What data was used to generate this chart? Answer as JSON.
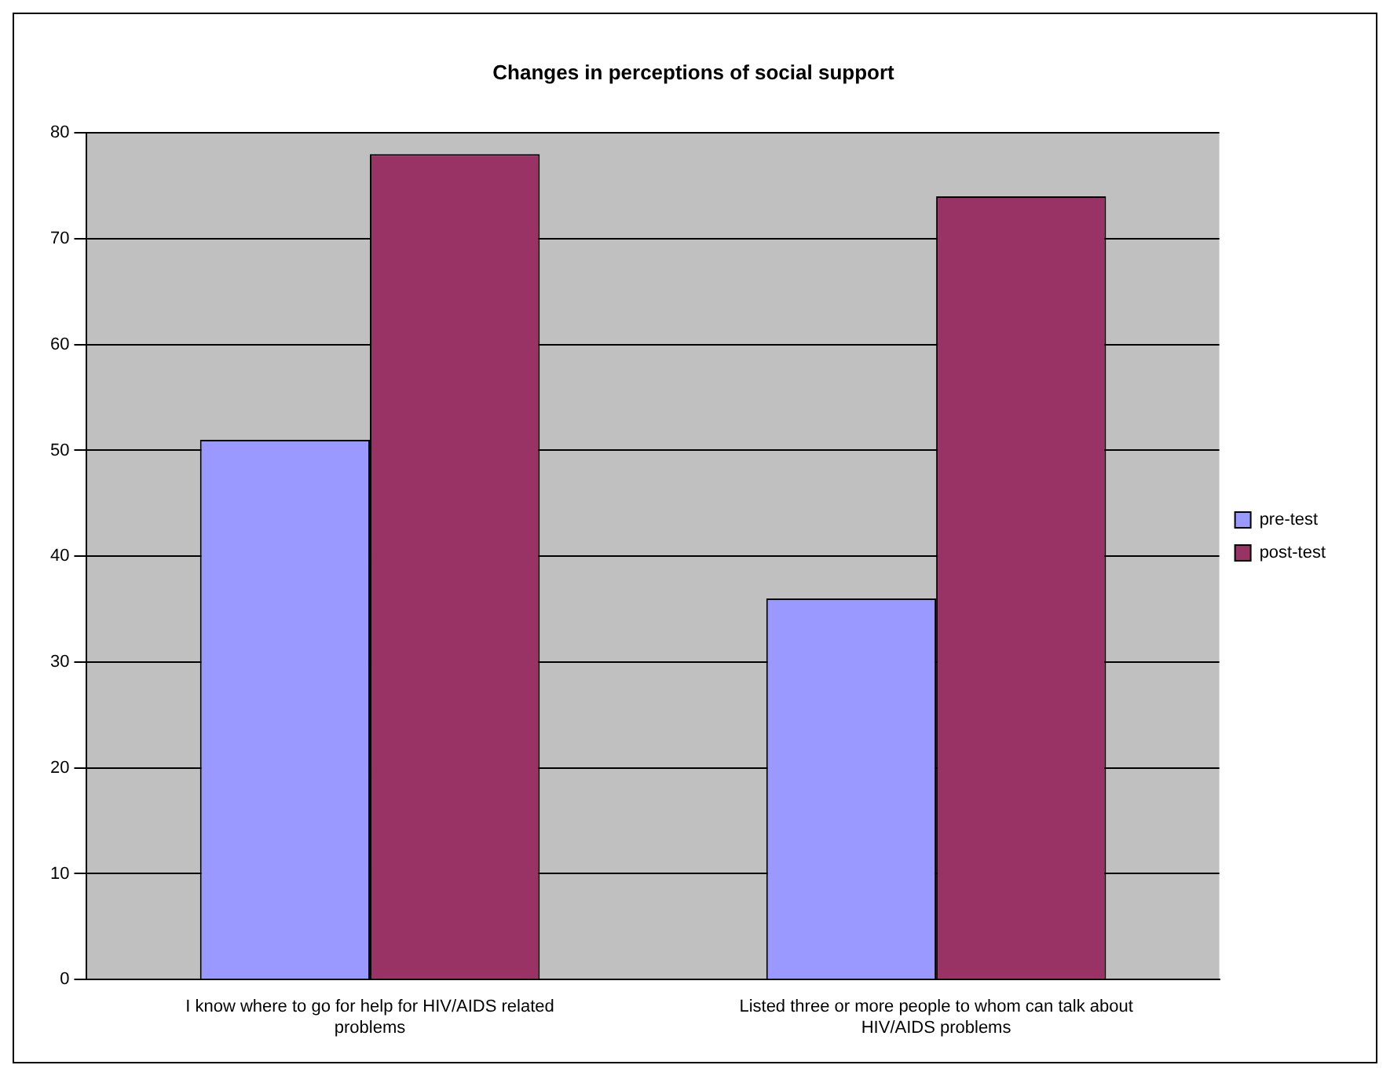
{
  "chart_data": {
    "type": "bar",
    "title": "Changes in perceptions of social support",
    "categories": [
      "I know where to go for help for HIV/AIDS related problems",
      "Listed three or more people to whom can talk about HIV/AIDS problems"
    ],
    "series": [
      {
        "name": "pre-test",
        "color": "#9999ff",
        "values": [
          51,
          36
        ]
      },
      {
        "name": "post-test",
        "color": "#993366",
        "values": [
          78,
          74
        ]
      }
    ],
    "ylim": [
      0,
      80
    ],
    "yticks": [
      0,
      10,
      20,
      30,
      40,
      50,
      60,
      70,
      80
    ],
    "grid": "y",
    "legend": "right"
  }
}
